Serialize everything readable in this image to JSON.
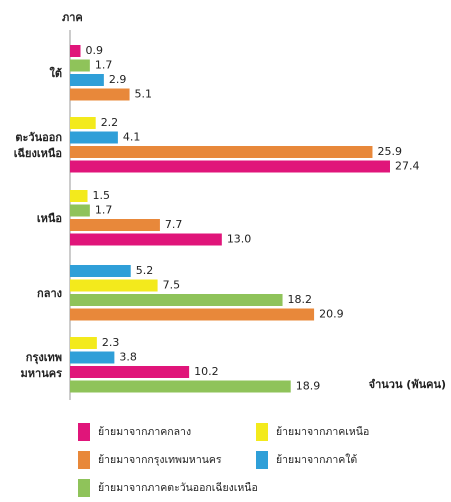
{
  "chart_data": {
    "type": "bar",
    "orientation": "horizontal",
    "y_label": "ภาค",
    "x_label": "จำนวน (พันคน)",
    "categories": [
      [
        "ใต้"
      ],
      [
        "ตะวันออก",
        "เฉียงเหนือ"
      ],
      [
        "เหนือ"
      ],
      [
        "กลาง"
      ],
      [
        "กรุงเทพ",
        "มหานคร"
      ]
    ],
    "xlim": [
      0,
      28
    ],
    "series": [
      {
        "name": "ย้ายมาจากภาคกลาง",
        "color": "#e0157a",
        "values": [
          0.9,
          27.4,
          13.0,
          null,
          10.2
        ],
        "value_labels": [
          "0.9",
          "27.4",
          "13.0",
          null,
          "10.2"
        ]
      },
      {
        "name": "ย้ายมาจากภาคเหนือ",
        "color": "#f3ea1c",
        "values": [
          null,
          2.2,
          1.5,
          7.5,
          2.3
        ],
        "value_labels": [
          null,
          "2.2",
          "1.5",
          "7.5",
          "2.3"
        ]
      },
      {
        "name": "ย้ายมาจากกรุงเทพมหานคร",
        "color": "#e8883a",
        "values": [
          5.1,
          25.9,
          7.7,
          20.9,
          null
        ],
        "value_labels": [
          "5.1",
          "25.9",
          "7.7",
          "20.9",
          null
        ]
      },
      {
        "name": "ย้ายมาจากภาคใต้",
        "color": "#2f9fd8",
        "values": [
          2.9,
          4.1,
          null,
          5.2,
          3.8
        ],
        "value_labels": [
          "2.9",
          "4.1",
          null,
          "5.2",
          "3.8"
        ]
      },
      {
        "name": "ย้ายมาจากภาคตะวันออกเฉียงเหนือ",
        "color": "#8fc35a",
        "values": [
          1.7,
          null,
          1.7,
          18.2,
          18.9
        ],
        "value_labels": [
          "1.7",
          null,
          "1.7",
          "18.2",
          "18.9"
        ]
      }
    ]
  }
}
